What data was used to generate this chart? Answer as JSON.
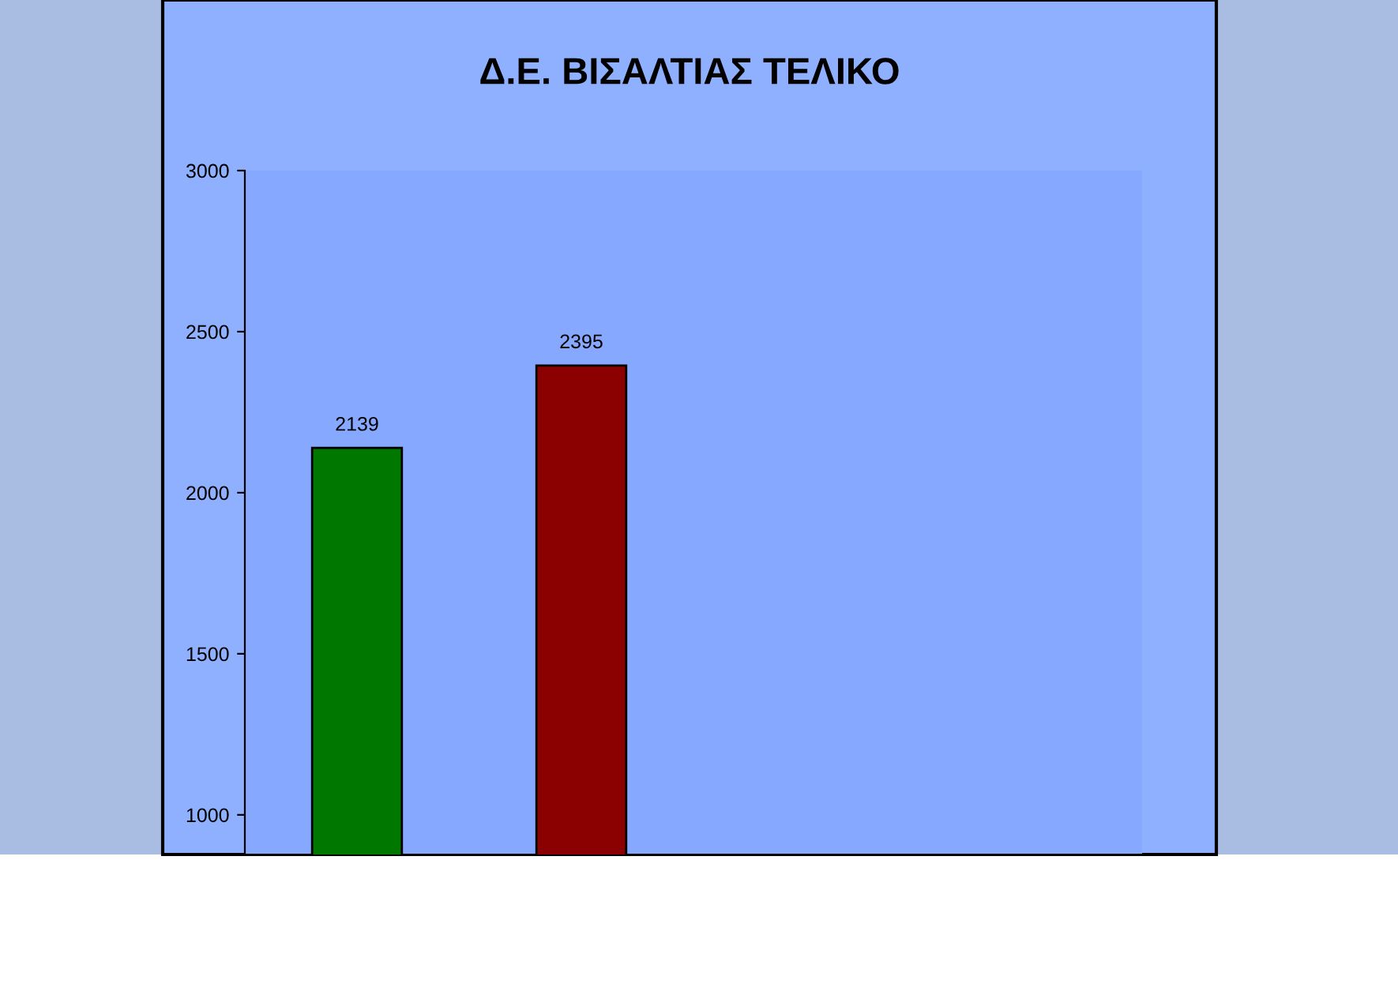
{
  "chart_data": {
    "type": "bar",
    "title": "Δ.Ε. ΒΙΣΑΛΤΙΑΣ ΤΕΛΙΚΟ",
    "categories": [
      null,
      null,
      null,
      null
    ],
    "values": [
      2139,
      2395,
      null,
      null
    ],
    "colors": [
      "#007800",
      "#8b0000",
      "#000000",
      "#000000"
    ],
    "ylim": [
      877,
      3000
    ],
    "yticks": [
      1000,
      1500,
      2000,
      2500,
      3000
    ],
    "data_labels": true
  }
}
